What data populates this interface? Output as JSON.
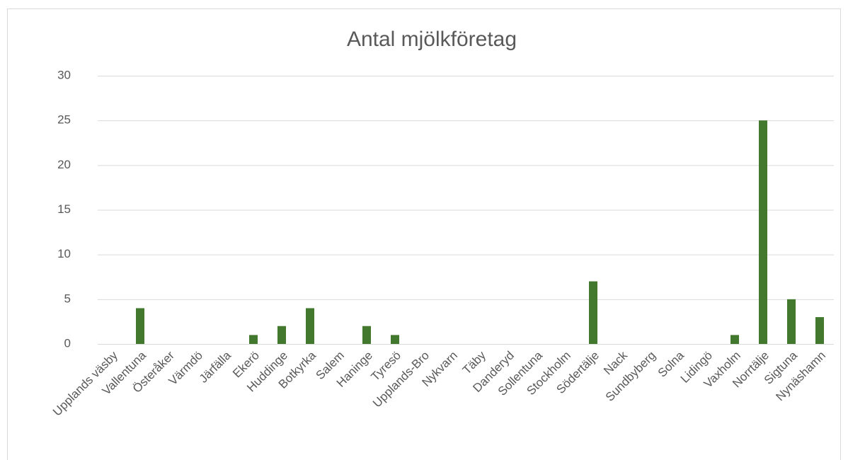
{
  "chart_data": {
    "type": "bar",
    "title": "Antal mjölkföretag",
    "categories": [
      "Upplands väsby",
      "Vallentuna",
      "Österåker",
      "Värmdö",
      "Järfälla",
      "Ekerö",
      "Huddinge",
      "Botkyrka",
      "Salem",
      "Haninge",
      "Tyresö",
      "Upplands-Bro",
      "Nykvarn",
      "Täby",
      "Danderyd",
      "Sollentuna",
      "Stockholm",
      "Södertälje",
      "Nack",
      "Sundbyberg",
      "Solna",
      "Lidingö",
      "Vaxholm",
      "Norrtälje",
      "Sigtuna",
      "Nynäshamn"
    ],
    "values": [
      0,
      4,
      0,
      0,
      0,
      1,
      2,
      4,
      0,
      2,
      1,
      0,
      0,
      0,
      0,
      0,
      0,
      7,
      0,
      0,
      0,
      0,
      1,
      25,
      5,
      3
    ],
    "color": "#43782f",
    "ylim": [
      0,
      30
    ],
    "yticks": [
      0,
      5,
      10,
      15,
      20,
      25,
      30
    ],
    "grid": true
  }
}
